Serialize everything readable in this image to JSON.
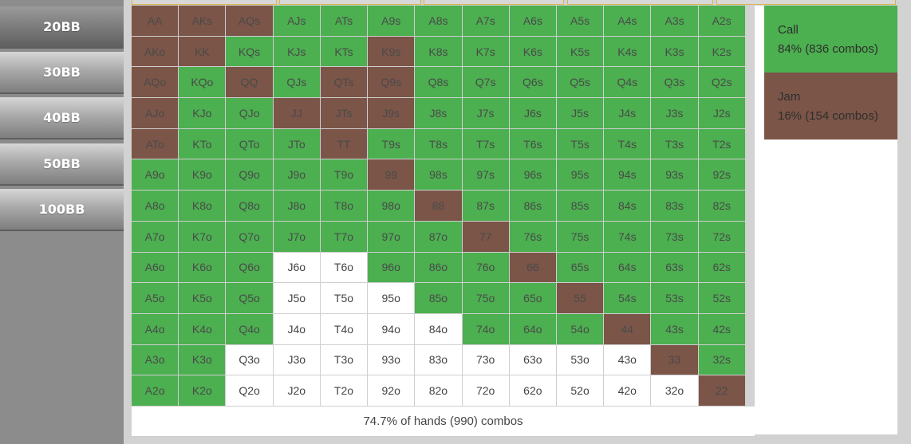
{
  "sidebar": {
    "buttons": [
      "20BB",
      "30BB",
      "40BB",
      "50BB",
      "100BB"
    ],
    "active": "20BB"
  },
  "colors": {
    "call": "#4caf50",
    "jam": "#7b5548",
    "fold": "#ffffff"
  },
  "grid": {
    "rows": [
      [
        [
          "AA",
          "jam"
        ],
        [
          "AKs",
          "jam"
        ],
        [
          "AQs",
          "jam"
        ],
        [
          "AJs",
          "call"
        ],
        [
          "ATs",
          "call"
        ],
        [
          "A9s",
          "call"
        ],
        [
          "A8s",
          "call"
        ],
        [
          "A7s",
          "call"
        ],
        [
          "A6s",
          "call"
        ],
        [
          "A5s",
          "call"
        ],
        [
          "A4s",
          "call"
        ],
        [
          "A3s",
          "call"
        ],
        [
          "A2s",
          "call"
        ]
      ],
      [
        [
          "AKo",
          "jam"
        ],
        [
          "KK",
          "jam"
        ],
        [
          "KQs",
          "call"
        ],
        [
          "KJs",
          "call"
        ],
        [
          "KTs",
          "call"
        ],
        [
          "K9s",
          "jam"
        ],
        [
          "K8s",
          "call"
        ],
        [
          "K7s",
          "call"
        ],
        [
          "K6s",
          "call"
        ],
        [
          "K5s",
          "call"
        ],
        [
          "K4s",
          "call"
        ],
        [
          "K3s",
          "call"
        ],
        [
          "K2s",
          "call"
        ]
      ],
      [
        [
          "AQo",
          "jam"
        ],
        [
          "KQo",
          "call"
        ],
        [
          "QQ",
          "jam"
        ],
        [
          "QJs",
          "call"
        ],
        [
          "QTs",
          "jam"
        ],
        [
          "Q9s",
          "jam"
        ],
        [
          "Q8s",
          "call"
        ],
        [
          "Q7s",
          "call"
        ],
        [
          "Q6s",
          "call"
        ],
        [
          "Q5s",
          "call"
        ],
        [
          "Q4s",
          "call"
        ],
        [
          "Q3s",
          "call"
        ],
        [
          "Q2s",
          "call"
        ]
      ],
      [
        [
          "AJo",
          "jam"
        ],
        [
          "KJo",
          "call"
        ],
        [
          "QJo",
          "call"
        ],
        [
          "JJ",
          "jam"
        ],
        [
          "JTs",
          "jam"
        ],
        [
          "J9s",
          "jam"
        ],
        [
          "J8s",
          "call"
        ],
        [
          "J7s",
          "call"
        ],
        [
          "J6s",
          "call"
        ],
        [
          "J5s",
          "call"
        ],
        [
          "J4s",
          "call"
        ],
        [
          "J3s",
          "call"
        ],
        [
          "J2s",
          "call"
        ]
      ],
      [
        [
          "ATo",
          "jam"
        ],
        [
          "KTo",
          "call"
        ],
        [
          "QTo",
          "call"
        ],
        [
          "JTo",
          "call"
        ],
        [
          "TT",
          "jam"
        ],
        [
          "T9s",
          "call"
        ],
        [
          "T8s",
          "call"
        ],
        [
          "T7s",
          "call"
        ],
        [
          "T6s",
          "call"
        ],
        [
          "T5s",
          "call"
        ],
        [
          "T4s",
          "call"
        ],
        [
          "T3s",
          "call"
        ],
        [
          "T2s",
          "call"
        ]
      ],
      [
        [
          "A9o",
          "call"
        ],
        [
          "K9o",
          "call"
        ],
        [
          "Q9o",
          "call"
        ],
        [
          "J9o",
          "call"
        ],
        [
          "T9o",
          "call"
        ],
        [
          "99",
          "jam"
        ],
        [
          "98s",
          "call"
        ],
        [
          "97s",
          "call"
        ],
        [
          "96s",
          "call"
        ],
        [
          "95s",
          "call"
        ],
        [
          "94s",
          "call"
        ],
        [
          "93s",
          "call"
        ],
        [
          "92s",
          "call"
        ]
      ],
      [
        [
          "A8o",
          "call"
        ],
        [
          "K8o",
          "call"
        ],
        [
          "Q8o",
          "call"
        ],
        [
          "J8o",
          "call"
        ],
        [
          "T8o",
          "call"
        ],
        [
          "98o",
          "call"
        ],
        [
          "88",
          "jam"
        ],
        [
          "87s",
          "call"
        ],
        [
          "86s",
          "call"
        ],
        [
          "85s",
          "call"
        ],
        [
          "84s",
          "call"
        ],
        [
          "83s",
          "call"
        ],
        [
          "82s",
          "call"
        ]
      ],
      [
        [
          "A7o",
          "call"
        ],
        [
          "K7o",
          "call"
        ],
        [
          "Q7o",
          "call"
        ],
        [
          "J7o",
          "call"
        ],
        [
          "T7o",
          "call"
        ],
        [
          "97o",
          "call"
        ],
        [
          "87o",
          "call"
        ],
        [
          "77",
          "jam"
        ],
        [
          "76s",
          "call"
        ],
        [
          "75s",
          "call"
        ],
        [
          "74s",
          "call"
        ],
        [
          "73s",
          "call"
        ],
        [
          "72s",
          "call"
        ]
      ],
      [
        [
          "A6o",
          "call"
        ],
        [
          "K6o",
          "call"
        ],
        [
          "Q6o",
          "call"
        ],
        [
          "J6o",
          "fold"
        ],
        [
          "T6o",
          "fold"
        ],
        [
          "96o",
          "call"
        ],
        [
          "86o",
          "call"
        ],
        [
          "76o",
          "call"
        ],
        [
          "66",
          "jam"
        ],
        [
          "65s",
          "call"
        ],
        [
          "64s",
          "call"
        ],
        [
          "63s",
          "call"
        ],
        [
          "62s",
          "call"
        ]
      ],
      [
        [
          "A5o",
          "call"
        ],
        [
          "K5o",
          "call"
        ],
        [
          "Q5o",
          "call"
        ],
        [
          "J5o",
          "fold"
        ],
        [
          "T5o",
          "fold"
        ],
        [
          "95o",
          "fold"
        ],
        [
          "85o",
          "call"
        ],
        [
          "75o",
          "call"
        ],
        [
          "65o",
          "call"
        ],
        [
          "55",
          "jam"
        ],
        [
          "54s",
          "call"
        ],
        [
          "53s",
          "call"
        ],
        [
          "52s",
          "call"
        ]
      ],
      [
        [
          "A4o",
          "call"
        ],
        [
          "K4o",
          "call"
        ],
        [
          "Q4o",
          "call"
        ],
        [
          "J4o",
          "fold"
        ],
        [
          "T4o",
          "fold"
        ],
        [
          "94o",
          "fold"
        ],
        [
          "84o",
          "fold"
        ],
        [
          "74o",
          "call"
        ],
        [
          "64o",
          "call"
        ],
        [
          "54o",
          "call"
        ],
        [
          "44",
          "jam"
        ],
        [
          "43s",
          "call"
        ],
        [
          "42s",
          "call"
        ]
      ],
      [
        [
          "A3o",
          "call"
        ],
        [
          "K3o",
          "call"
        ],
        [
          "Q3o",
          "fold"
        ],
        [
          "J3o",
          "fold"
        ],
        [
          "T3o",
          "fold"
        ],
        [
          "93o",
          "fold"
        ],
        [
          "83o",
          "fold"
        ],
        [
          "73o",
          "fold"
        ],
        [
          "63o",
          "fold"
        ],
        [
          "53o",
          "fold"
        ],
        [
          "43o",
          "fold"
        ],
        [
          "33",
          "jam"
        ],
        [
          "32s",
          "call"
        ]
      ],
      [
        [
          "A2o",
          "call"
        ],
        [
          "K2o",
          "call"
        ],
        [
          "Q2o",
          "fold"
        ],
        [
          "J2o",
          "fold"
        ],
        [
          "T2o",
          "fold"
        ],
        [
          "92o",
          "fold"
        ],
        [
          "82o",
          "fold"
        ],
        [
          "72o",
          "fold"
        ],
        [
          "62o",
          "fold"
        ],
        [
          "52o",
          "fold"
        ],
        [
          "42o",
          "fold"
        ],
        [
          "32o",
          "fold"
        ],
        [
          "22",
          "jam"
        ]
      ]
    ]
  },
  "summary": "74.7% of hands (990) combos",
  "legend": {
    "call": {
      "label": "Call",
      "stats": "84% (836 combos)"
    },
    "jam": {
      "label": "Jam",
      "stats": "16% (154 combos)"
    }
  }
}
